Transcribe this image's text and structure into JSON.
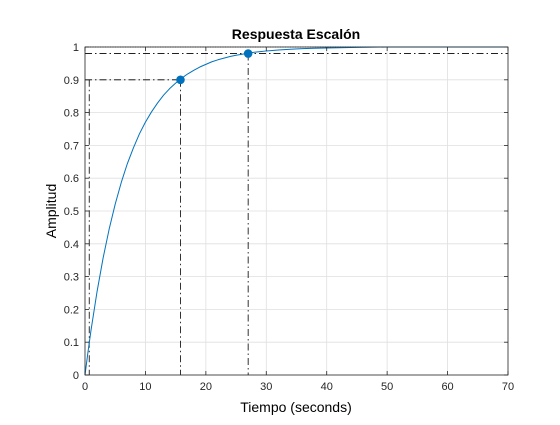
{
  "chart_data": {
    "type": "line",
    "title": "Respuesta Escalón",
    "xlabel": "Tiempo (seconds)",
    "ylabel": "Amplitud",
    "xlim": [
      0,
      70
    ],
    "ylim": [
      0,
      1
    ],
    "xticks": [
      0,
      10,
      20,
      30,
      40,
      50,
      60,
      70
    ],
    "xtick_labels": [
      "0",
      "10",
      "20",
      "30",
      "40",
      "50",
      "60",
      "70"
    ],
    "yticks": [
      0,
      0.1,
      0.2,
      0.3,
      0.4,
      0.5,
      0.6,
      0.7,
      0.8,
      0.9,
      1
    ],
    "ytick_labels": [
      "0",
      "0.1",
      "0.2",
      "0.3",
      "0.4",
      "0.5",
      "0.6",
      "0.7",
      "0.8",
      "0.9",
      "1"
    ],
    "grid": true,
    "series": [
      {
        "color": "#0072bd",
        "x": [
          0,
          0.5,
          1,
          2,
          3,
          4,
          5,
          6,
          7,
          8,
          9,
          10,
          11,
          12,
          13,
          14,
          15,
          16,
          17,
          18,
          19,
          20,
          21,
          22,
          23,
          24,
          25,
          26,
          27,
          28,
          29,
          30,
          32,
          34,
          36,
          38,
          40,
          45,
          50,
          55,
          60,
          65,
          70
        ],
        "y": [
          0,
          0.071,
          0.137,
          0.255,
          0.357,
          0.445,
          0.521,
          0.587,
          0.644,
          0.692,
          0.735,
          0.771,
          0.802,
          0.829,
          0.853,
          0.873,
          0.89,
          0.905,
          0.918,
          0.929,
          0.939,
          0.947,
          0.955,
          0.961,
          0.966,
          0.971,
          0.975,
          0.978,
          0.981,
          0.984,
          0.986,
          0.988,
          0.991,
          0.993,
          0.995,
          0.996,
          0.997,
          0.999,
          1.0,
          1.0,
          1.0,
          1.0,
          1.0
        ]
      }
    ],
    "markers": [
      {
        "x": 15.8,
        "y": 0.9
      },
      {
        "x": 27.0,
        "y": 0.98
      }
    ],
    "reference_lines": {
      "rise_start_x": 0.7,
      "rise_end_x": 15.8,
      "settling_x": 27.0,
      "low_y": 0.9,
      "settle_y": 0.98,
      "final_y": 1.0
    }
  }
}
